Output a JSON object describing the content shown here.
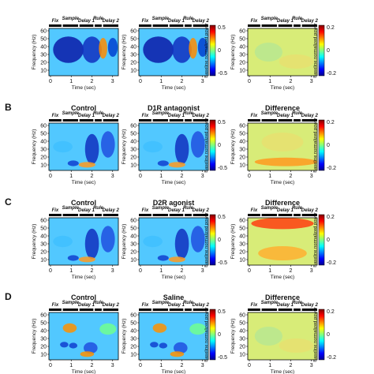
{
  "epochs": [
    "Fix",
    "Sample",
    "Delay 1",
    "Rule",
    "Delay 2"
  ],
  "y_axis_label": "Frequency (Hz)",
  "y_ticks": [
    "10",
    "20",
    "30",
    "40",
    "50",
    "60"
  ],
  "x_axis_label": "Time (sec)",
  "x_ticks": [
    "0",
    "1",
    "2",
    "3"
  ],
  "colorbar_label": "Baseline normalized power",
  "colorbar_main_ticks": [
    "0.5",
    "0",
    "-0.5"
  ],
  "colorbar_diff_ticks": [
    "0.2",
    "0",
    "-0.2"
  ],
  "colors": {
    "colormap": [
      "#00008f",
      "#0000ff",
      "#0080ff",
      "#00ffff",
      "#80ff80",
      "#ffff00",
      "#ff8000",
      "#ff0000",
      "#800000"
    ],
    "epoch_bar": "#000000"
  },
  "rows": [
    {
      "letter": "",
      "titles": [
        "",
        "",
        ""
      ]
    },
    {
      "letter": "B",
      "titles": [
        "Control",
        "D1R antagonist",
        "Difference"
      ]
    },
    {
      "letter": "C",
      "titles": [
        "Control",
        "D2R agonist",
        "Difference"
      ]
    },
    {
      "letter": "D",
      "titles": [
        "Control",
        "Saline",
        "Difference"
      ]
    }
  ]
}
